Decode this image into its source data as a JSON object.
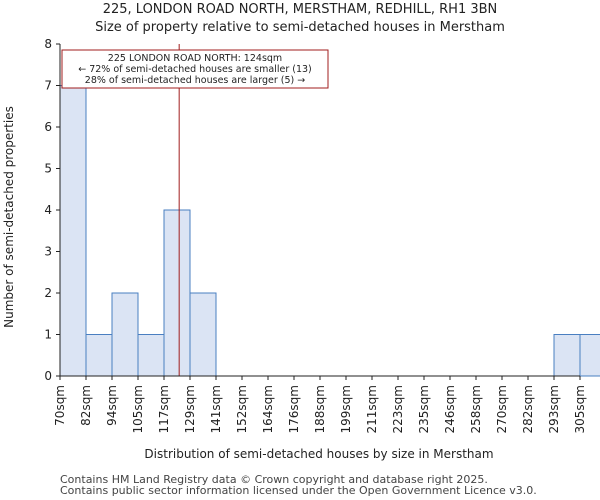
{
  "header": {
    "title": "225, LONDON ROAD NORTH, MERSTHAM, REDHILL, RH1 3BN",
    "subtitle": "Size of property relative to semi-detached houses in Merstham"
  },
  "chart_data": {
    "type": "bar",
    "categories": [
      "70sqm",
      "82sqm",
      "94sqm",
      "105sqm",
      "117sqm",
      "129sqm",
      "141sqm",
      "152sqm",
      "164sqm",
      "176sqm",
      "188sqm",
      "199sqm",
      "211sqm",
      "223sqm",
      "235sqm",
      "246sqm",
      "258sqm",
      "270sqm",
      "282sqm",
      "293sqm",
      "305sqm"
    ],
    "values": [
      7,
      1,
      2,
      1,
      4,
      2,
      0,
      0,
      0,
      0,
      0,
      0,
      0,
      0,
      0,
      0,
      0,
      0,
      0,
      1,
      1
    ],
    "xlabel": "Distribution of semi-detached houses by size in Merstham",
    "ylabel": "Number of semi-detached properties",
    "ylim": [
      0,
      8
    ],
    "yticks": [
      "0",
      "1",
      "2",
      "3",
      "4",
      "5",
      "6",
      "7",
      "8"
    ],
    "grid": false,
    "bar_color": "#dbe4f4",
    "bar_edge_color": "#4a7fc1",
    "marker": {
      "value_sqm": 124,
      "color": "#a11d1d",
      "lines": [
        "225 LONDON ROAD NORTH: 124sqm",
        "← 72% of semi-detached houses are smaller (13)",
        "28% of semi-detached houses are larger (5) →"
      ]
    }
  },
  "footer": {
    "line1": "Contains HM Land Registry data © Crown copyright and database right 2025.",
    "line2": "Contains public sector information licensed under the Open Government Licence v3.0."
  }
}
